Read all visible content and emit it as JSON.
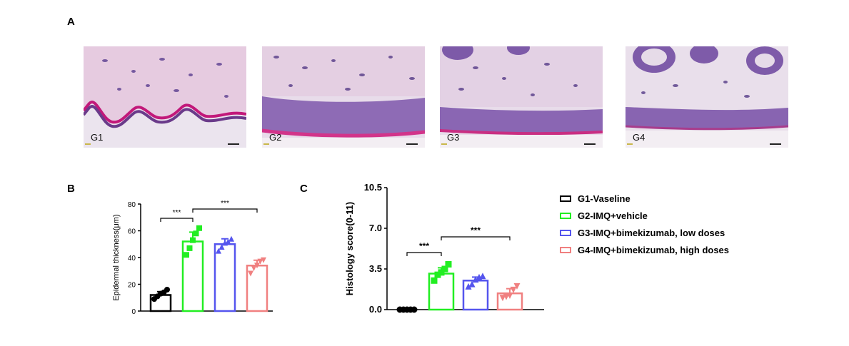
{
  "panels": {
    "a": "A",
    "b": "B",
    "c": "C"
  },
  "micrographs": [
    {
      "label": "G1"
    },
    {
      "label": "G2"
    },
    {
      "label": "G3"
    },
    {
      "label": "G4"
    }
  ],
  "colors": {
    "g1": "#000000",
    "g2": "#22ee22",
    "g3": "#5555ee",
    "g4": "#f08080"
  },
  "legend": [
    "G1-Vaseline",
    "G2-IMQ+vehicle",
    "G3-IMQ+bimekizumab, low doses",
    "G4-IMQ+bimekizumab, high doses"
  ],
  "chart_data": [
    {
      "type": "bar",
      "ylabel": "Epidermal thickness(μm)",
      "ylim": [
        0,
        80
      ],
      "yticks": [
        "0",
        "20",
        "40",
        "60",
        "80"
      ],
      "categories": [
        "G1-Vaseline",
        "G2-IMQ+vehicle",
        "G3-IMQ+bimekizumab, low doses",
        "G4-IMQ+bimekizumab, high doses"
      ],
      "values": [
        12,
        52,
        50,
        34
      ],
      "errors": [
        2.5,
        7,
        4,
        4
      ],
      "points": [
        [
          9,
          11,
          13,
          14,
          16
        ],
        [
          42,
          47,
          53,
          58,
          62
        ],
        [
          45,
          48,
          51,
          52,
          54
        ],
        [
          28,
          32,
          34,
          37,
          38
        ]
      ],
      "markers": [
        "circle",
        "square",
        "triangle-up",
        "triangle-down"
      ],
      "significance": [
        {
          "from": 0,
          "to": 1,
          "label": "***"
        },
        {
          "from": 1,
          "to": 3,
          "label": "***"
        }
      ]
    },
    {
      "type": "bar",
      "ylabel": "Histology score(0-11)",
      "ylim": [
        0,
        10.5
      ],
      "yticks": [
        "0.0",
        "3.5",
        "7.0",
        "10.5"
      ],
      "categories": [
        "G1-Vaseline",
        "G2-IMQ+vehicle",
        "G3-IMQ+bimekizumab, low doses",
        "G4-IMQ+bimekizumab, high doses"
      ],
      "values": [
        0,
        3.1,
        2.5,
        1.4
      ],
      "errors": [
        0,
        0.5,
        0.3,
        0.4
      ],
      "points": [
        [
          0,
          0,
          0,
          0,
          0
        ],
        [
          2.5,
          3.0,
          3.2,
          3.5,
          3.9
        ],
        [
          2.0,
          2.2,
          2.6,
          2.8,
          2.9
        ],
        [
          1.0,
          1.1,
          1.2,
          1.7,
          2.0
        ]
      ],
      "markers": [
        "circle",
        "square",
        "triangle-up",
        "triangle-down"
      ],
      "significance": [
        {
          "from": 0,
          "to": 1,
          "label": "***"
        },
        {
          "from": 1,
          "to": 3,
          "label": "***"
        }
      ]
    }
  ]
}
